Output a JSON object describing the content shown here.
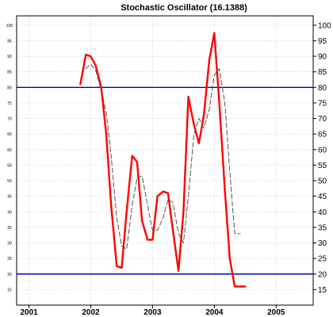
{
  "chart_data": {
    "type": "line",
    "title": "Stochastic Oscillator (16.1388)",
    "x_ticks": [
      "2001",
      "2002",
      "2003",
      "2004",
      "2005"
    ],
    "xlim": [
      2000.8,
      2005.6
    ],
    "ylim": [
      10,
      103
    ],
    "y_ticks": [
      15,
      20,
      25,
      30,
      35,
      40,
      45,
      50,
      55,
      60,
      65,
      70,
      75,
      80,
      85,
      90,
      95,
      100
    ],
    "ref_lines": [
      80,
      20
    ],
    "grid": true,
    "series": [
      {
        "style": "solid",
        "color": "#ff0000",
        "x": [
          2001.83,
          2001.92,
          2002.0,
          2002.08,
          2002.17,
          2002.25,
          2002.33,
          2002.42,
          2002.5,
          2002.58,
          2002.67,
          2002.75,
          2002.83,
          2002.92,
          2003.0,
          2003.08,
          2003.17,
          2003.25,
          2003.33,
          2003.42,
          2003.5,
          2003.58,
          2003.67,
          2003.75,
          2003.83,
          2003.92,
          2004.0,
          2004.08,
          2004.17,
          2004.25,
          2004.33,
          2004.42,
          2004.5
        ],
        "y": [
          81,
          90.5,
          90,
          87,
          80,
          65,
          42,
          22.5,
          22,
          40,
          58,
          56,
          37,
          31,
          31,
          45,
          46.5,
          46,
          34,
          21,
          40,
          77,
          68,
          62,
          71,
          89,
          97.5,
          75,
          47,
          25,
          16,
          16,
          16
        ]
      },
      {
        "style": "dashed",
        "color": "#555555",
        "x": [
          2001.92,
          2002.0,
          2002.08,
          2002.17,
          2002.25,
          2002.33,
          2002.42,
          2002.5,
          2002.58,
          2002.67,
          2002.75,
          2002.83,
          2002.92,
          2003.0,
          2003.08,
          2003.17,
          2003.25,
          2003.33,
          2003.42,
          2003.5,
          2003.58,
          2003.67,
          2003.75,
          2003.83,
          2003.92,
          2004.0,
          2004.08,
          2004.17,
          2004.25,
          2004.33,
          2004.42
        ],
        "y": [
          86,
          87.5,
          85.5,
          79,
          72,
          58,
          38,
          29,
          28,
          42,
          51,
          51.5,
          42,
          34,
          34,
          38,
          44,
          43,
          33,
          30,
          45,
          65,
          70,
          67,
          73,
          84,
          86,
          75,
          53,
          33,
          33
        ]
      }
    ]
  }
}
